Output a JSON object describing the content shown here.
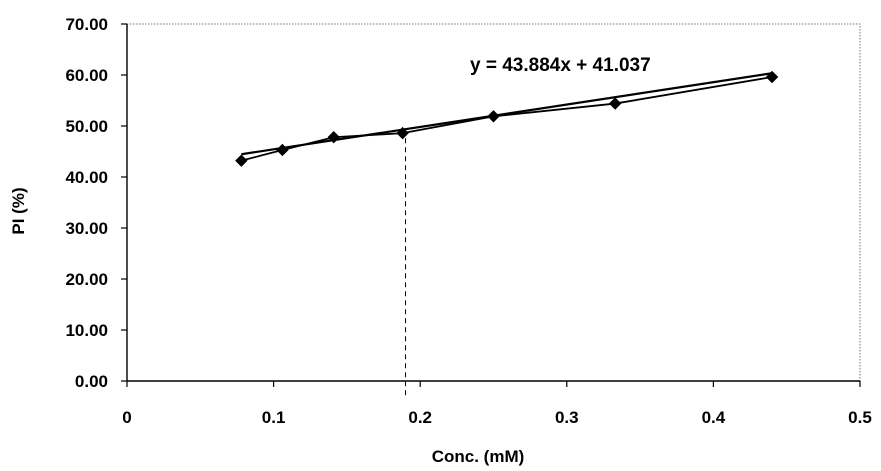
{
  "chart_data": {
    "type": "scatter",
    "xlabel": "Conc. (mM)",
    "ylabel": "PI (%)",
    "xlim": [
      0,
      0.5
    ],
    "ylim": [
      0,
      70
    ],
    "x_tick_labels": [
      "0",
      "0.1",
      "0.2",
      "0.3",
      "0.4",
      "0.5"
    ],
    "y_tick_labels": [
      "0.00",
      "10.00",
      "20.00",
      "30.00",
      "40.00",
      "50.00",
      "60.00",
      "70.00"
    ],
    "x_ticks": [
      0,
      0.1,
      0.2,
      0.3,
      0.4,
      0.5
    ],
    "y_ticks": [
      0,
      10,
      20,
      30,
      40,
      50,
      60,
      70
    ],
    "series": [
      {
        "x": [
          0.078,
          0.106,
          0.141,
          0.188,
          0.25,
          0.333,
          0.44
        ],
        "y": [
          43.2,
          45.3,
          47.8,
          48.6,
          51.9,
          54.4,
          59.6
        ]
      }
    ],
    "trendline": {
      "slope": 43.884,
      "intercept": 41.037,
      "x_range": [
        0.078,
        0.44
      ],
      "equation": "y = 43.884x + 41.037"
    },
    "reference_line": {
      "x": 0.19,
      "style": "dashed"
    },
    "grid": false,
    "legend": "none"
  }
}
